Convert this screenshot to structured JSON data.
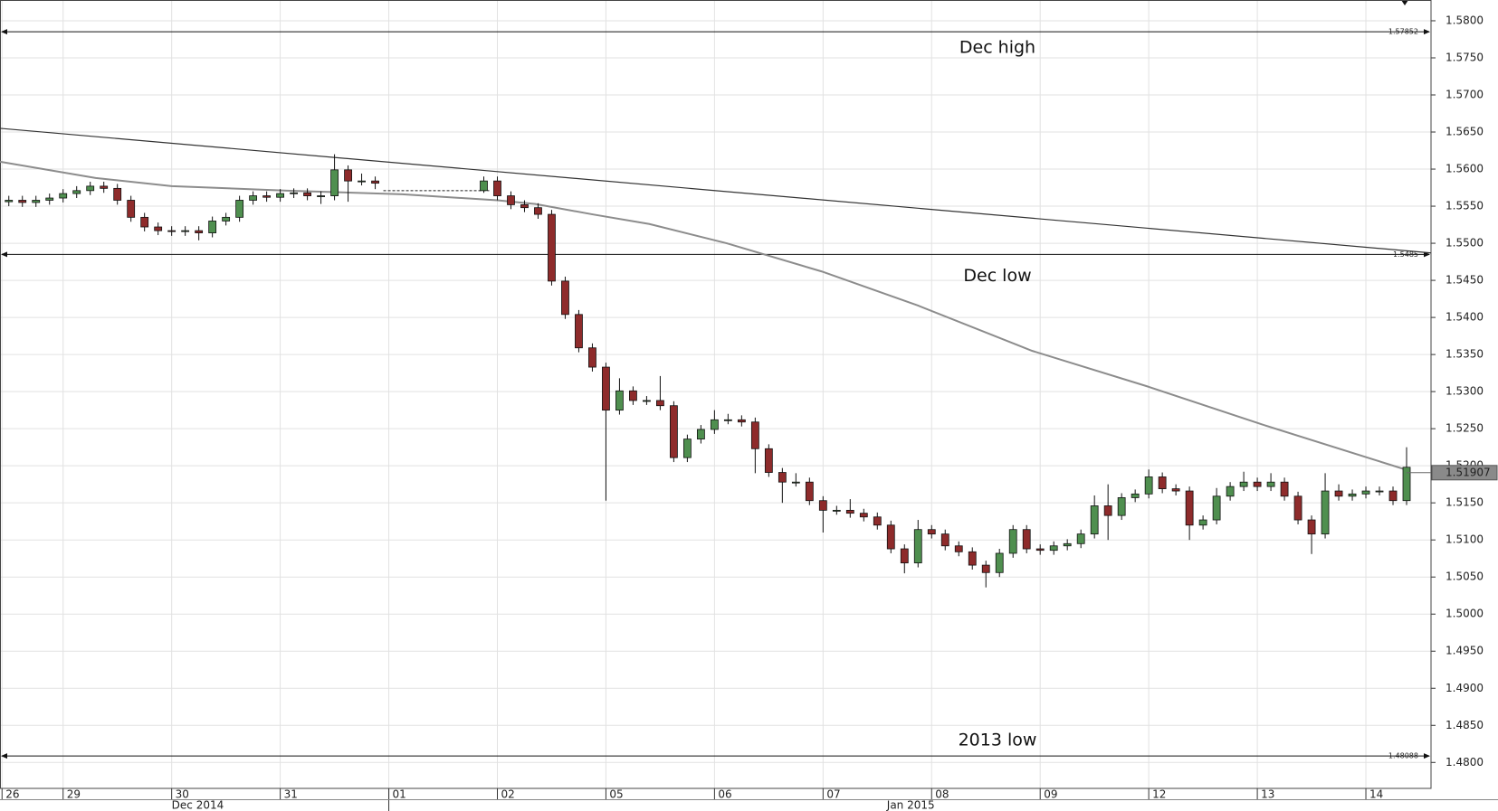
{
  "chart_data": {
    "type": "candlestick",
    "x": [
      -4,
      -3,
      -2,
      -1,
      0,
      1,
      2,
      3,
      4,
      5,
      6,
      7,
      8,
      9,
      10,
      11,
      12,
      13,
      14,
      15,
      16,
      17,
      18,
      19,
      20,
      21,
      22,
      23,
      31,
      32,
      33,
      34,
      35,
      36,
      37,
      38,
      39,
      40,
      41,
      42,
      43,
      44,
      45,
      46,
      47,
      48,
      49,
      50,
      51,
      52,
      53,
      54,
      55,
      56,
      57,
      58,
      59,
      60,
      61,
      62,
      63,
      64,
      65,
      66,
      67,
      68,
      69,
      70,
      71,
      72,
      73,
      74,
      75,
      76,
      77,
      78,
      79,
      80,
      81,
      82,
      83,
      84,
      85,
      86,
      87,
      88,
      89,
      90,
      91,
      92,
      93,
      94,
      95,
      96,
      97,
      98,
      99
    ],
    "open": [
      1.5556,
      1.5558,
      1.5555,
      1.5558,
      1.5561,
      1.5567,
      1.5571,
      1.5577,
      1.5574,
      1.5558,
      1.5535,
      1.5522,
      1.5517,
      1.5516,
      1.5517,
      1.5514,
      1.553,
      1.5535,
      1.5558,
      1.5564,
      1.5562,
      1.5567,
      1.5568,
      1.5564,
      1.5564,
      1.5599,
      1.5584,
      1.5584,
      1.5571,
      1.5584,
      1.5564,
      1.5552,
      1.5548,
      1.5539,
      1.5449,
      1.5404,
      1.5359,
      1.5333,
      1.5275,
      1.5301,
      1.5288,
      1.5288,
      1.5281,
      1.5211,
      1.5236,
      1.5249,
      1.5262,
      1.5262,
      1.5259,
      1.5223,
      1.5191,
      1.5178,
      1.5178,
      1.5153,
      1.514,
      1.514,
      1.5136,
      1.5131,
      1.512,
      1.5088,
      1.5069,
      1.5114,
      1.5108,
      1.5092,
      1.5084,
      1.5066,
      1.5056,
      1.5082,
      1.5114,
      1.5088,
      1.5086,
      1.5092,
      1.5095,
      1.5108,
      1.5146,
      1.5133,
      1.5157,
      1.5162,
      1.5185,
      1.5169,
      1.5166,
      1.512,
      1.5127,
      1.5159,
      1.5172,
      1.5178,
      1.5172,
      1.5178,
      1.5159,
      1.5127,
      1.5108,
      1.5166,
      1.5159,
      1.5162,
      1.5166,
      1.5166,
      1.5153
    ],
    "high": [
      1.5564,
      1.5564,
      1.5564,
      1.5567,
      1.5573,
      1.5577,
      1.5583,
      1.5583,
      1.558,
      1.5564,
      1.5541,
      1.5528,
      1.5523,
      1.5523,
      1.5523,
      1.5536,
      1.5541,
      1.5564,
      1.557,
      1.557,
      1.5573,
      1.5574,
      1.5574,
      1.557,
      1.562,
      1.5605,
      1.5594,
      1.559,
      1.559,
      1.559,
      1.557,
      1.5558,
      1.5554,
      1.5545,
      1.5455,
      1.541,
      1.5365,
      1.5339,
      1.5318,
      1.5307,
      1.5294,
      1.5321,
      1.5287,
      1.5242,
      1.5255,
      1.5275,
      1.527,
      1.5268,
      1.5265,
      1.5229,
      1.5197,
      1.519,
      1.5184,
      1.5159,
      1.5146,
      1.5155,
      1.5142,
      1.5137,
      1.5126,
      1.5094,
      1.5127,
      1.512,
      1.5114,
      1.5098,
      1.509,
      1.5072,
      1.5088,
      1.512,
      1.512,
      1.5094,
      1.5098,
      1.5101,
      1.5114,
      1.516,
      1.5175,
      1.5163,
      1.5168,
      1.5195,
      1.5191,
      1.5175,
      1.5172,
      1.5133,
      1.517,
      1.5178,
      1.5192,
      1.5184,
      1.519,
      1.5184,
      1.5165,
      1.5133,
      1.519,
      1.5175,
      1.5168,
      1.5172,
      1.5172,
      1.5172,
      1.5225
    ],
    "low": [
      1.555,
      1.5549,
      1.5549,
      1.5552,
      1.5555,
      1.5561,
      1.5565,
      1.5568,
      1.5552,
      1.5529,
      1.5516,
      1.5511,
      1.551,
      1.551,
      1.5504,
      1.5508,
      1.5524,
      1.5529,
      1.5552,
      1.5556,
      1.5556,
      1.5561,
      1.5558,
      1.5553,
      1.5558,
      1.5556,
      1.5578,
      1.5573,
      1.5568,
      1.5558,
      1.5546,
      1.5542,
      1.5533,
      1.5443,
      1.5398,
      1.5353,
      1.5327,
      1.5153,
      1.5269,
      1.5282,
      1.5282,
      1.5275,
      1.5205,
      1.5205,
      1.523,
      1.5243,
      1.5256,
      1.5253,
      1.519,
      1.5185,
      1.515,
      1.5172,
      1.5147,
      1.511,
      1.5134,
      1.513,
      1.5125,
      1.5114,
      1.5082,
      1.5055,
      1.5063,
      1.5102,
      1.5086,
      1.5078,
      1.506,
      1.5036,
      1.505,
      1.5076,
      1.5082,
      1.508,
      1.508,
      1.5086,
      1.5089,
      1.5102,
      1.51,
      1.5127,
      1.5151,
      1.5156,
      1.5163,
      1.516,
      1.51,
      1.5114,
      1.5121,
      1.5153,
      1.5166,
      1.5166,
      1.5166,
      1.5153,
      1.5121,
      1.5081,
      1.5102,
      1.5153,
      1.5153,
      1.5156,
      1.516,
      1.5147,
      1.5147
    ],
    "close": [
      1.5558,
      1.5555,
      1.5558,
      1.5561,
      1.5567,
      1.5571,
      1.5577,
      1.5574,
      1.5558,
      1.5535,
      1.5522,
      1.5517,
      1.5516,
      1.5517,
      1.5514,
      1.553,
      1.5535,
      1.5558,
      1.5564,
      1.5562,
      1.5567,
      1.5568,
      1.5564,
      1.5564,
      1.5599,
      1.5584,
      1.5584,
      1.5581,
      1.5584,
      1.5564,
      1.5552,
      1.5548,
      1.5539,
      1.5449,
      1.5404,
      1.5359,
      1.5333,
      1.5275,
      1.5301,
      1.5288,
      1.5288,
      1.5281,
      1.5211,
      1.5236,
      1.5249,
      1.5262,
      1.5262,
      1.5259,
      1.5223,
      1.5191,
      1.5178,
      1.5178,
      1.5153,
      1.514,
      1.514,
      1.5136,
      1.5131,
      1.512,
      1.5088,
      1.5069,
      1.5114,
      1.5108,
      1.5092,
      1.5084,
      1.5066,
      1.5056,
      1.5082,
      1.5114,
      1.5088,
      1.5086,
      1.5092,
      1.5095,
      1.5108,
      1.5146,
      1.5133,
      1.5157,
      1.5162,
      1.5185,
      1.5169,
      1.5166,
      1.512,
      1.5127,
      1.5159,
      1.5172,
      1.5178,
      1.5172,
      1.5178,
      1.5159,
      1.5127,
      1.5108,
      1.5166,
      1.5159,
      1.5162,
      1.5166,
      1.5166,
      1.5153,
      1.5198
    ],
    "up_color": "#4f8f4f",
    "down_color": "#8e2b2b",
    "moving_average": {
      "color": "#8c8c8c",
      "x": [
        -4.65,
        2.4,
        8,
        16.5,
        25,
        32,
        34.8,
        39,
        43.2,
        48.9,
        55.9,
        63,
        71.4,
        79.9,
        88.3,
        98.9
      ],
      "values": [
        1.561,
        1.5588,
        1.5577,
        1.5571,
        1.5566,
        1.5558,
        1.5553,
        1.5539,
        1.5526,
        1.55,
        1.5462,
        1.5416,
        1.5355,
        1.5307,
        1.5256,
        1.5195
      ]
    },
    "trendline": {
      "color": "#333333",
      "x": [
        -4.65,
        100.8
      ],
      "values": [
        1.5655,
        1.5487
      ]
    },
    "gap_line": {
      "x": [
        23.6,
        31.4
      ],
      "values": [
        1.5571,
        1.5571
      ]
    },
    "levels": [
      {
        "label": "Dec high",
        "value": 1.57852
      },
      {
        "label": "Dec low",
        "value": 1.5485
      },
      {
        "label": "2013 low",
        "value": 1.48088
      }
    ],
    "last_price": 1.51907,
    "xlim": [
      -4.65,
      100.8
    ],
    "ylim": [
      1.4765,
      1.5828
    ],
    "xticks": [
      {
        "value": -4.5,
        "label": "26"
      },
      {
        "value": 0,
        "label": "29"
      },
      {
        "value": 8,
        "label": "30"
      },
      {
        "value": 16,
        "label": "31"
      },
      {
        "value": 24,
        "label": "01"
      },
      {
        "value": 32,
        "label": "02"
      },
      {
        "value": 40,
        "label": "05"
      },
      {
        "value": 48,
        "label": "06"
      },
      {
        "value": 56,
        "label": "07"
      },
      {
        "value": 64,
        "label": "08"
      },
      {
        "value": 72,
        "label": "09"
      },
      {
        "value": 80,
        "label": "12"
      },
      {
        "value": 88,
        "label": "13"
      },
      {
        "value": 96,
        "label": "14"
      }
    ],
    "month_labels": [
      {
        "value": 8,
        "label": "Dec 2014"
      },
      {
        "value": 60.7,
        "label": "Jan 2015"
      }
    ],
    "month_divider": 24,
    "yticks": [
      {
        "value": 1.48,
        "label": "1.4800"
      },
      {
        "value": 1.485,
        "label": "1.4850"
      },
      {
        "value": 1.49,
        "label": "1.4900"
      },
      {
        "value": 1.495,
        "label": "1.4950"
      },
      {
        "value": 1.5,
        "label": "1.5000"
      },
      {
        "value": 1.505,
        "label": "1.5050"
      },
      {
        "value": 1.51,
        "label": "1.5100"
      },
      {
        "value": 1.515,
        "label": "1.5150"
      },
      {
        "value": 1.52,
        "label": "1.5200"
      },
      {
        "value": 1.525,
        "label": "1.5250"
      },
      {
        "value": 1.53,
        "label": "1.5300"
      },
      {
        "value": 1.535,
        "label": "1.5350"
      },
      {
        "value": 1.54,
        "label": "1.5400"
      },
      {
        "value": 1.545,
        "label": "1.5450"
      },
      {
        "value": 1.55,
        "label": "1.5500"
      },
      {
        "value": 1.555,
        "label": "1.5550"
      },
      {
        "value": 1.56,
        "label": "1.5600"
      },
      {
        "value": 1.565,
        "label": "1.5650"
      },
      {
        "value": 1.57,
        "label": "1.5700"
      },
      {
        "value": 1.575,
        "label": "1.5750"
      },
      {
        "value": 1.58,
        "label": "1.5800"
      }
    ],
    "grid": true
  }
}
